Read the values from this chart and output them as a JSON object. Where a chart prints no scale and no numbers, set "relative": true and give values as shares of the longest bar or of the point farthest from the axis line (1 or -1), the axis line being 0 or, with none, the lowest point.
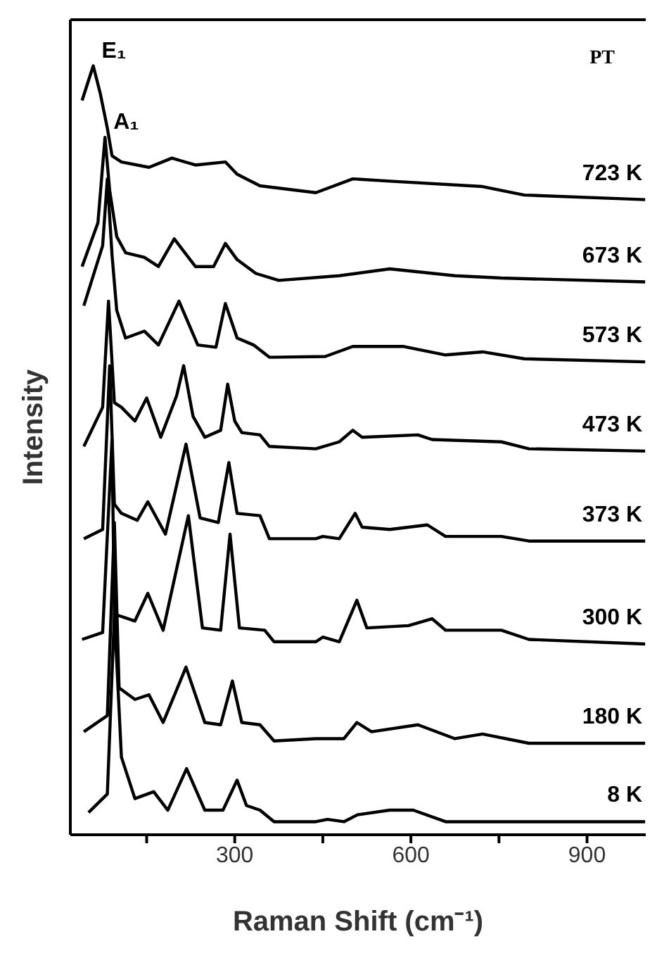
{
  "chart_data": {
    "type": "line",
    "relative": true,
    "xlabel": "Raman Shift (cm⁻¹)",
    "ylabel": "Intensity",
    "xlim": [
      20,
      1000
    ],
    "xticks": [
      {
        "value": 150,
        "label": null
      },
      300,
      {
        "value": 450,
        "label": null
      },
      600,
      {
        "value": 750,
        "label": null
      },
      900
    ],
    "annotations": [
      "PT",
      {
        "text": "E₁",
        "x": 59,
        "y": 1.0
      },
      {
        "text": "A₁",
        "x": 79,
        "y": 0.907
      }
    ],
    "series": [
      {
        "name": "723 K",
        "color": "#000000",
        "x": [
          40,
          59,
          71,
          83,
          91,
          107,
          154,
          193,
          233,
          284,
          304,
          343,
          438,
          501,
          564,
          722,
          793,
          999
        ],
        "values": [
          0.955,
          1.0,
          0.964,
          0.919,
          0.883,
          0.875,
          0.868,
          0.88,
          0.871,
          0.875,
          0.859,
          0.844,
          0.835,
          0.853,
          0.85,
          0.843,
          0.832,
          0.826
        ]
      },
      {
        "name": "673 K",
        "color": "#000000",
        "x": [
          40,
          67,
          79,
          87,
          99,
          114,
          146,
          170,
          197,
          233,
          264,
          284,
          304,
          336,
          375,
          478,
          564,
          675,
          754,
          999
        ],
        "values": [
          0.739,
          0.796,
          0.907,
          0.838,
          0.778,
          0.757,
          0.751,
          0.739,
          0.775,
          0.739,
          0.739,
          0.769,
          0.748,
          0.73,
          0.721,
          0.727,
          0.736,
          0.727,
          0.724,
          0.719
        ]
      },
      {
        "name": "573 K",
        "color": "#000000",
        "x": [
          43,
          75,
          83,
          91,
          99,
          114,
          146,
          170,
          205,
          237,
          268,
          284,
          304,
          332,
          359,
          454,
          501,
          588,
          659,
          722,
          793,
          999
        ],
        "values": [
          0.688,
          0.766,
          0.853,
          0.754,
          0.682,
          0.646,
          0.655,
          0.637,
          0.694,
          0.637,
          0.634,
          0.691,
          0.646,
          0.637,
          0.621,
          0.622,
          0.635,
          0.635,
          0.624,
          0.628,
          0.619,
          0.615
        ]
      },
      {
        "name": "473 K",
        "color": "#000000",
        "x": [
          43,
          75,
          85,
          95,
          107,
          130,
          150,
          174,
          201,
          213,
          229,
          249,
          276,
          288,
          300,
          312,
          343,
          359,
          438,
          478,
          501,
          517,
          612,
          636,
          754,
          801,
          999
        ],
        "values": [
          0.505,
          0.556,
          0.694,
          0.562,
          0.556,
          0.538,
          0.568,
          0.517,
          0.571,
          0.61,
          0.544,
          0.517,
          0.526,
          0.586,
          0.538,
          0.523,
          0.52,
          0.505,
          0.502,
          0.511,
          0.526,
          0.517,
          0.52,
          0.514,
          0.511,
          0.502,
          0.499
        ]
      },
      {
        "name": "373 K",
        "color": "#000000",
        "x": [
          43,
          75,
          87,
          95,
          107,
          134,
          152,
          182,
          217,
          241,
          272,
          290,
          304,
          343,
          359,
          438,
          450,
          478,
          505,
          517,
          564,
          628,
          659,
          754,
          801,
          999
        ],
        "values": [
          0.385,
          0.397,
          0.61,
          0.43,
          0.418,
          0.409,
          0.433,
          0.391,
          0.508,
          0.412,
          0.406,
          0.484,
          0.418,
          0.415,
          0.385,
          0.385,
          0.388,
          0.385,
          0.418,
          0.4,
          0.397,
          0.403,
          0.388,
          0.388,
          0.382,
          0.382
        ]
      },
      {
        "name": "300 K",
        "color": "#000000",
        "x": [
          40,
          75,
          91,
          95,
          130,
          152,
          178,
          221,
          245,
          276,
          292,
          308,
          351,
          367,
          438,
          450,
          478,
          508,
          525,
          596,
          636,
          659,
          754,
          801,
          999
        ],
        "values": [
          0.254,
          0.263,
          0.514,
          0.287,
          0.278,
          0.314,
          0.266,
          0.415,
          0.269,
          0.266,
          0.391,
          0.269,
          0.266,
          0.251,
          0.251,
          0.257,
          0.251,
          0.305,
          0.269,
          0.272,
          0.281,
          0.266,
          0.266,
          0.254,
          0.248
        ]
      },
      {
        "name": "180 K",
        "color": "#000000",
        "x": [
          43,
          83,
          95,
          103,
          130,
          154,
          178,
          217,
          249,
          276,
          296,
          312,
          343,
          367,
          438,
          486,
          508,
          533,
          612,
          675,
          722,
          801,
          999
        ],
        "values": [
          0.134,
          0.155,
          0.406,
          0.191,
          0.176,
          0.182,
          0.146,
          0.218,
          0.146,
          0.143,
          0.2,
          0.146,
          0.143,
          0.122,
          0.125,
          0.125,
          0.146,
          0.134,
          0.143,
          0.125,
          0.131,
          0.119,
          0.119
        ]
      },
      {
        "name": "8 K",
        "color": "#000000",
        "x": [
          51,
          83,
          95,
          107,
          130,
          162,
          186,
          218,
          249,
          280,
          304,
          320,
          343,
          367,
          438,
          458,
          486,
          509,
          564,
          604,
          659,
          754,
          999
        ],
        "values": [
          0.029,
          0.053,
          0.287,
          0.101,
          0.047,
          0.056,
          0.032,
          0.086,
          0.032,
          0.032,
          0.071,
          0.038,
          0.032,
          0.017,
          0.017,
          0.02,
          0.017,
          0.026,
          0.032,
          0.032,
          0.017,
          0.017,
          0.017
        ]
      }
    ]
  }
}
